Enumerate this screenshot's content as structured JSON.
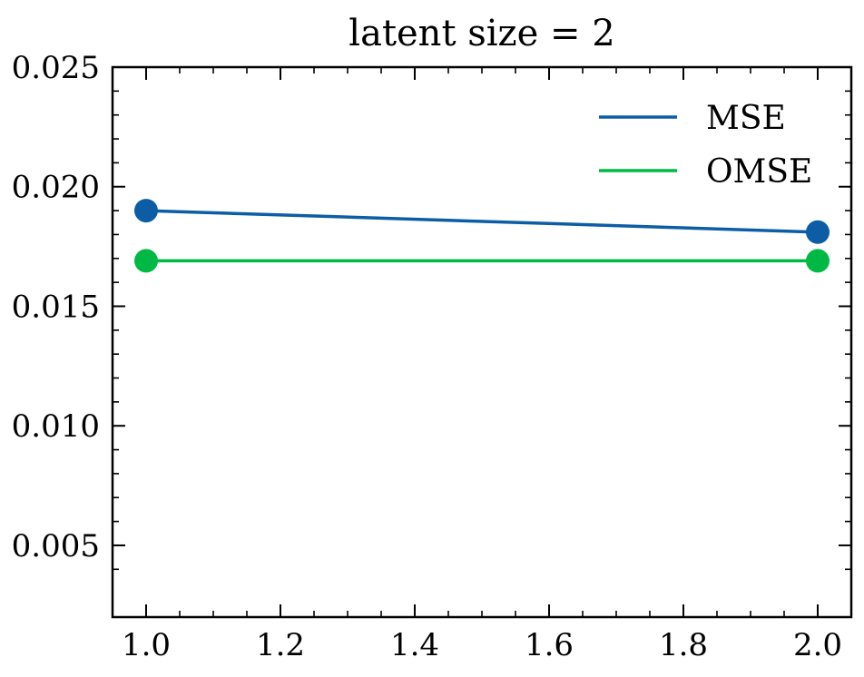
{
  "chart_data": {
    "type": "line",
    "title": "latent size = 2",
    "xlabel": "",
    "ylabel": "",
    "xlim": [
      0.95,
      2.05
    ],
    "ylim": [
      0.002,
      0.025
    ],
    "x_ticks": [
      1.0,
      1.2,
      1.4,
      1.6,
      1.8,
      2.0
    ],
    "x_tick_labels": [
      "1.0",
      "1.2",
      "1.4",
      "1.6",
      "1.8",
      "2.0"
    ],
    "y_ticks": [
      0.005,
      0.01,
      0.015,
      0.02,
      0.025
    ],
    "y_tick_labels": [
      "0.005",
      "0.010",
      "0.015",
      "0.020",
      "0.025"
    ],
    "grid": false,
    "legend_position": "top-right",
    "series": [
      {
        "name": "MSE",
        "color": "#0c5da5",
        "x": [
          1.0,
          2.0
        ],
        "y": [
          0.019,
          0.0181
        ]
      },
      {
        "name": "OMSE",
        "color": "#00b945",
        "x": [
          1.0,
          2.0
        ],
        "y": [
          0.0169,
          0.0169
        ]
      }
    ]
  }
}
